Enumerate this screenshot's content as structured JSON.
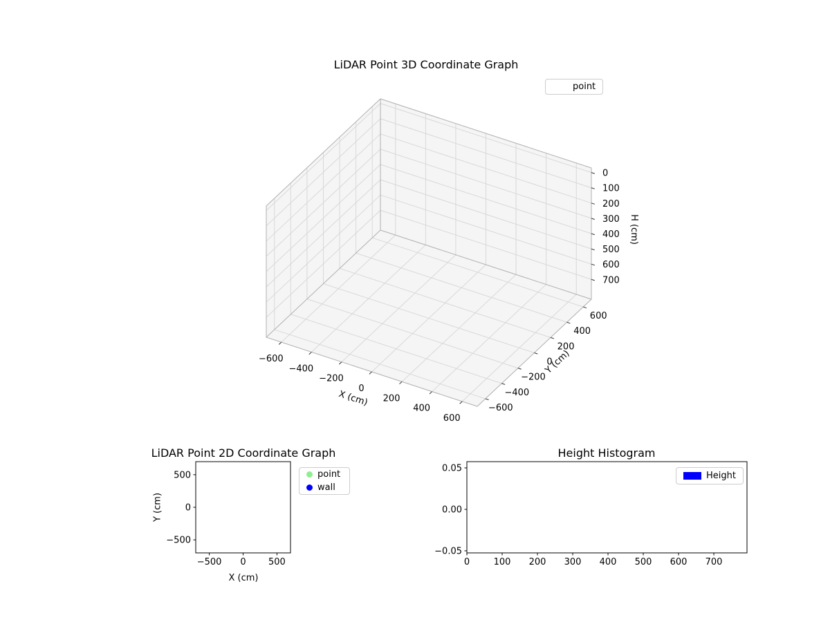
{
  "window": {
    "background": "#ffffff"
  },
  "chart_data": [
    {
      "id": "lidar-3d",
      "type": "scatter3d",
      "title": "LiDAR Point 3D Coordinate Graph",
      "xlabel": "X (cm)",
      "ylabel": "Y (cm)",
      "zlabel": "H (cm)",
      "xlim": [
        -700,
        700
      ],
      "ylim": [
        -700,
        700
      ],
      "zlim": [
        -30,
        830
      ],
      "z_axis_inverted": true,
      "grid": true,
      "pane_color": "#f5f5f5",
      "grid_color": "#d8d8d8",
      "xticks": [
        -600,
        -400,
        -200,
        0,
        200,
        400,
        600
      ],
      "xtick_labels": [
        "−600",
        "−400",
        "−200",
        "0",
        "200",
        "400",
        "600"
      ],
      "yticks": [
        -600,
        -400,
        -200,
        0,
        200,
        400,
        600
      ],
      "ytick_labels": [
        "−600",
        "−400",
        "−200",
        "0",
        "200",
        "400",
        "600"
      ],
      "zticks": [
        0,
        100,
        200,
        300,
        400,
        500,
        600,
        700
      ],
      "ztick_labels": [
        "0",
        "100",
        "200",
        "300",
        "400",
        "500",
        "600",
        "700"
      ],
      "legend": {
        "position": "upper-right-outside",
        "entries": [
          {
            "label": "point",
            "marker": "none"
          }
        ]
      },
      "series": [
        {
          "name": "point",
          "color": "#90ee90",
          "points": []
        }
      ]
    },
    {
      "id": "lidar-2d",
      "type": "scatter",
      "title": "LiDAR Point 2D Coordinate Graph",
      "xlabel": "X (cm)",
      "ylabel": "Y (cm)",
      "xlim": [
        -700,
        700
      ],
      "ylim": [
        -700,
        700
      ],
      "grid": false,
      "xticks": [
        -500,
        0,
        500
      ],
      "xtick_labels": [
        "−500",
        "0",
        "500"
      ],
      "yticks": [
        500,
        0,
        -500
      ],
      "ytick_labels": [
        "500",
        "0",
        "−500"
      ],
      "legend": {
        "position": "outside-right",
        "entries": [
          {
            "label": "point",
            "marker": "circle",
            "color": "#90ee90"
          },
          {
            "label": "wall",
            "marker": "circle",
            "color": "#0000ff"
          }
        ]
      },
      "series": [
        {
          "name": "point",
          "color": "#90ee90",
          "points": []
        },
        {
          "name": "wall",
          "color": "#0000ff",
          "points": []
        }
      ]
    },
    {
      "id": "height-histogram",
      "type": "bar",
      "title": "Height Histogram",
      "xlabel": "",
      "ylabel": "",
      "xlim": [
        0,
        794
      ],
      "ylim": [
        -0.0525,
        0.0575
      ],
      "grid": false,
      "xticks": [
        0,
        100,
        200,
        300,
        400,
        500,
        600,
        700
      ],
      "xtick_labels": [
        "0",
        "100",
        "200",
        "300",
        "400",
        "500",
        "600",
        "700"
      ],
      "yticks": [
        0.05,
        0,
        -0.05
      ],
      "ytick_labels": [
        "0.05",
        "0.00",
        "−0.05"
      ],
      "legend": {
        "position": "upper-right",
        "entries": [
          {
            "label": "Height",
            "marker": "rect",
            "color": "#0000ff"
          }
        ]
      },
      "bar_color": "#0000ff",
      "values": []
    }
  ]
}
